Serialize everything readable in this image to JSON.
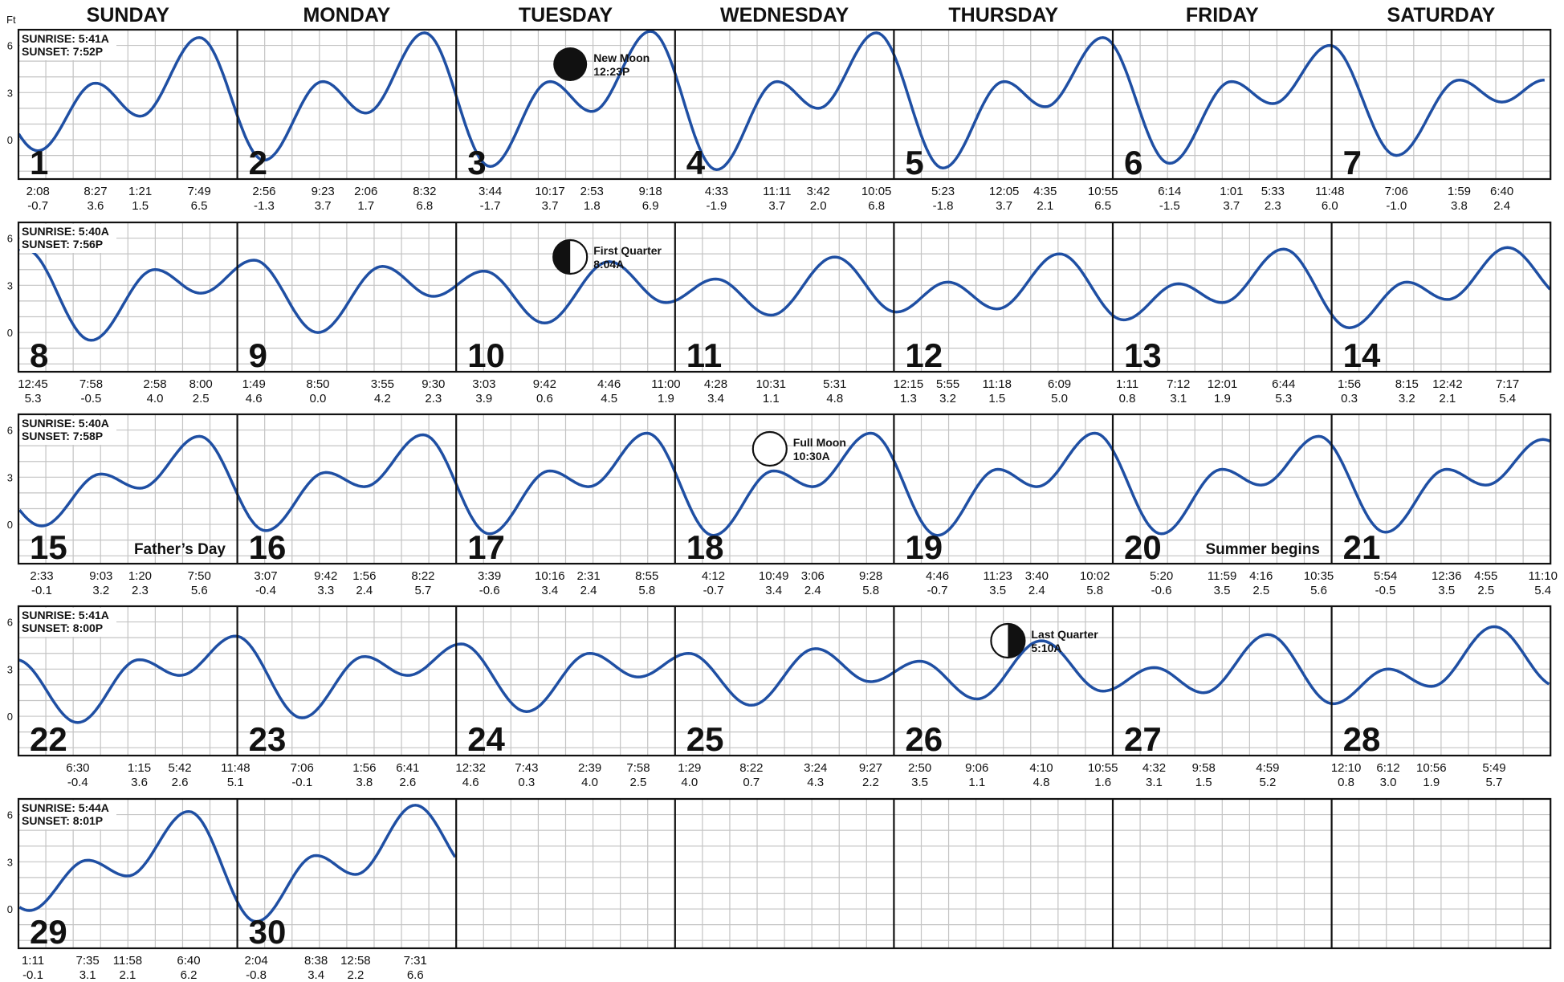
{
  "chart_data": {
    "type": "line",
    "title": "",
    "unit_label": "Ft",
    "y_ticks": [
      "6",
      "3",
      "0"
    ],
    "ylim": [
      -2,
      7
    ],
    "grid": true,
    "line_color": "#1f4fa3",
    "day_names": [
      "SUNDAY",
      "MONDAY",
      "TUESDAY",
      "WEDNESDAY",
      "THURSDAY",
      "FRIDAY",
      "SATURDAY"
    ],
    "weeks": [
      {
        "sunrise": "SUNRISE:  5:41A",
        "sunset": "SUNSET:  7:52P",
        "days": [
          {
            "day": "1",
            "tides": [
              {
                "time": "2:08",
                "height": "-0.7"
              },
              {
                "time": "8:27",
                "height": "3.6"
              },
              {
                "time": "1:21",
                "height": "1.5"
              },
              {
                "time": "7:49",
                "height": "6.5"
              }
            ]
          },
          {
            "day": "2",
            "tides": [
              {
                "time": "2:56",
                "height": "-1.3"
              },
              {
                "time": "9:23",
                "height": "3.7"
              },
              {
                "time": "2:06",
                "height": "1.7"
              },
              {
                "time": "8:32",
                "height": "6.8"
              }
            ]
          },
          {
            "day": "3",
            "tides": [
              {
                "time": "3:44",
                "height": "-1.7"
              },
              {
                "time": "10:17",
                "height": "3.7"
              },
              {
                "time": "2:53",
                "height": "1.8"
              },
              {
                "time": "9:18",
                "height": "6.9"
              }
            ]
          },
          {
            "day": "4",
            "tides": [
              {
                "time": "4:33",
                "height": "-1.9"
              },
              {
                "time": "11:11",
                "height": "3.7"
              },
              {
                "time": "3:42",
                "height": "2.0"
              },
              {
                "time": "10:05",
                "height": "6.8"
              }
            ]
          },
          {
            "day": "5",
            "tides": [
              {
                "time": "5:23",
                "height": "-1.8"
              },
              {
                "time": "12:05",
                "height": "3.7"
              },
              {
                "time": "4:35",
                "height": "2.1"
              },
              {
                "time": "10:55",
                "height": "6.5"
              }
            ]
          },
          {
            "day": "6",
            "tides": [
              {
                "time": "6:14",
                "height": "-1.5"
              },
              {
                "time": "1:01",
                "height": "3.7"
              },
              {
                "time": "5:33",
                "height": "2.3"
              },
              {
                "time": "11:48",
                "height": "6.0"
              }
            ]
          },
          {
            "day": "7",
            "tides": [
              {
                "time": "7:06",
                "height": "-1.0"
              },
              {
                "time": "1:59",
                "height": "3.8"
              },
              {
                "time": "6:40",
                "height": "2.4"
              }
            ]
          }
        ]
      },
      {
        "sunrise": "SUNRISE:  5:40A",
        "sunset": "SUNSET:  7:56P",
        "days": [
          {
            "day": "8",
            "tides": [
              {
                "time": "12:45",
                "height": "5.3"
              },
              {
                "time": "7:58",
                "height": "-0.5"
              },
              {
                "time": "2:58",
                "height": "4.0"
              },
              {
                "time": "8:00",
                "height": "2.5"
              }
            ]
          },
          {
            "day": "9",
            "tides": [
              {
                "time": "1:49",
                "height": "4.6"
              },
              {
                "time": "8:50",
                "height": "0.0"
              },
              {
                "time": "3:55",
                "height": "4.2"
              },
              {
                "time": "9:30",
                "height": "2.3"
              }
            ]
          },
          {
            "day": "10",
            "tides": [
              {
                "time": "3:03",
                "height": "3.9"
              },
              {
                "time": "9:42",
                "height": "0.6"
              },
              {
                "time": "4:46",
                "height": "4.5"
              },
              {
                "time": "11:00",
                "height": "1.9"
              }
            ]
          },
          {
            "day": "11",
            "tides": [
              {
                "time": "4:28",
                "height": "3.4"
              },
              {
                "time": "10:31",
                "height": "1.1"
              },
              {
                "time": "5:31",
                "height": "4.8"
              }
            ]
          },
          {
            "day": "12",
            "tides": [
              {
                "time": "12:15",
                "height": "1.3"
              },
              {
                "time": "5:55",
                "height": "3.2"
              },
              {
                "time": "11:18",
                "height": "1.5"
              },
              {
                "time": "6:09",
                "height": "5.0"
              }
            ]
          },
          {
            "day": "13",
            "tides": [
              {
                "time": "1:11",
                "height": "0.8"
              },
              {
                "time": "7:12",
                "height": "3.1"
              },
              {
                "time": "12:01",
                "height": "1.9"
              },
              {
                "time": "6:44",
                "height": "5.3"
              }
            ]
          },
          {
            "day": "14",
            "tides": [
              {
                "time": "1:56",
                "height": "0.3"
              },
              {
                "time": "8:15",
                "height": "3.2"
              },
              {
                "time": "12:42",
                "height": "2.1"
              },
              {
                "time": "7:17",
                "height": "5.4"
              }
            ]
          }
        ]
      },
      {
        "sunrise": "SUNRISE:  5:40A",
        "sunset": "SUNSET:  7:58P",
        "days": [
          {
            "day": "15",
            "tides": [
              {
                "time": "2:33",
                "height": "-0.1"
              },
              {
                "time": "9:03",
                "height": "3.2"
              },
              {
                "time": "1:20",
                "height": "2.3"
              },
              {
                "time": "7:50",
                "height": "5.6"
              }
            ]
          },
          {
            "day": "16",
            "tides": [
              {
                "time": "3:07",
                "height": "-0.4"
              },
              {
                "time": "9:42",
                "height": "3.3"
              },
              {
                "time": "1:56",
                "height": "2.4"
              },
              {
                "time": "8:22",
                "height": "5.7"
              }
            ]
          },
          {
            "day": "17",
            "tides": [
              {
                "time": "3:39",
                "height": "-0.6"
              },
              {
                "time": "10:16",
                "height": "3.4"
              },
              {
                "time": "2:31",
                "height": "2.4"
              },
              {
                "time": "8:55",
                "height": "5.8"
              }
            ]
          },
          {
            "day": "18",
            "tides": [
              {
                "time": "4:12",
                "height": "-0.7"
              },
              {
                "time": "10:49",
                "height": "3.4"
              },
              {
                "time": "3:06",
                "height": "2.4"
              },
              {
                "time": "9:28",
                "height": "5.8"
              }
            ]
          },
          {
            "day": "19",
            "tides": [
              {
                "time": "4:46",
                "height": "-0.7"
              },
              {
                "time": "11:23",
                "height": "3.5"
              },
              {
                "time": "3:40",
                "height": "2.4"
              },
              {
                "time": "10:02",
                "height": "5.8"
              }
            ]
          },
          {
            "day": "20",
            "tides": [
              {
                "time": "5:20",
                "height": "-0.6"
              },
              {
                "time": "11:59",
                "height": "3.5"
              },
              {
                "time": "4:16",
                "height": "2.5"
              },
              {
                "time": "10:35",
                "height": "5.6"
              }
            ]
          },
          {
            "day": "21",
            "tides": [
              {
                "time": "5:54",
                "height": "-0.5"
              },
              {
                "time": "12:36",
                "height": "3.5"
              },
              {
                "time": "4:55",
                "height": "2.5"
              },
              {
                "time": "11:10",
                "height": "5.4"
              }
            ]
          }
        ]
      },
      {
        "sunrise": "SUNRISE:  5:41A",
        "sunset": "SUNSET:  8:00P",
        "days": [
          {
            "day": "22",
            "tides": [
              {
                "time": "6:30",
                "height": "-0.4"
              },
              {
                "time": "1:15",
                "height": "3.6"
              },
              {
                "time": "5:42",
                "height": "2.6"
              },
              {
                "time": "11:48",
                "height": "5.1"
              }
            ]
          },
          {
            "day": "23",
            "tides": [
              {
                "time": "7:06",
                "height": "-0.1"
              },
              {
                "time": "1:56",
                "height": "3.8"
              },
              {
                "time": "6:41",
                "height": "2.6"
              }
            ]
          },
          {
            "day": "24",
            "tides": [
              {
                "time": "12:32",
                "height": "4.6"
              },
              {
                "time": "7:43",
                "height": "0.3"
              },
              {
                "time": "2:39",
                "height": "4.0"
              },
              {
                "time": "7:58",
                "height": "2.5"
              }
            ]
          },
          {
            "day": "25",
            "tides": [
              {
                "time": "1:29",
                "height": "4.0"
              },
              {
                "time": "8:22",
                "height": "0.7"
              },
              {
                "time": "3:24",
                "height": "4.3"
              },
              {
                "time": "9:27",
                "height": "2.2"
              }
            ]
          },
          {
            "day": "26",
            "tides": [
              {
                "time": "2:50",
                "height": "3.5"
              },
              {
                "time": "9:06",
                "height": "1.1"
              },
              {
                "time": "4:10",
                "height": "4.8"
              },
              {
                "time": "10:55",
                "height": "1.6"
              }
            ]
          },
          {
            "day": "27",
            "tides": [
              {
                "time": "4:32",
                "height": "3.1"
              },
              {
                "time": "9:58",
                "height": "1.5"
              },
              {
                "time": "4:59",
                "height": "5.2"
              }
            ]
          },
          {
            "day": "28",
            "tides": [
              {
                "time": "12:10",
                "height": "0.8"
              },
              {
                "time": "6:12",
                "height": "3.0"
              },
              {
                "time": "10:56",
                "height": "1.9"
              },
              {
                "time": "5:49",
                "height": "5.7"
              }
            ]
          }
        ]
      },
      {
        "sunrise": "SUNRISE:  5:44A",
        "sunset": "SUNSET:  8:01P",
        "days": [
          {
            "day": "29",
            "tides": [
              {
                "time": "1:11",
                "height": "-0.1"
              },
              {
                "time": "7:35",
                "height": "3.1"
              },
              {
                "time": "11:58",
                "height": "2.1"
              },
              {
                "time": "6:40",
                "height": "6.2"
              }
            ]
          },
          {
            "day": "30",
            "tides": [
              {
                "time": "2:04",
                "height": "-0.8"
              },
              {
                "time": "8:38",
                "height": "3.4"
              },
              {
                "time": "12:58",
                "height": "2.2"
              },
              {
                "time": "7:31",
                "height": "6.6"
              }
            ]
          },
          null,
          null,
          null,
          null,
          null
        ]
      }
    ],
    "moon_phases": [
      {
        "week": 0,
        "day": 2,
        "phase": "new",
        "name": "New Moon",
        "time": "12:23P"
      },
      {
        "week": 1,
        "day": 2,
        "phase": "first",
        "name": "First Quarter",
        "time": "8:04A"
      },
      {
        "week": 2,
        "day": 3,
        "phase": "full",
        "name": "Full Moon",
        "time": "10:30A"
      },
      {
        "week": 3,
        "day": 4,
        "phase": "last",
        "name": "Last Quarter",
        "time": "5:10A"
      }
    ],
    "notes": [
      {
        "week": 2,
        "day": 0,
        "text": "Father’s Day"
      },
      {
        "week": 2,
        "day": 5,
        "text": "Summer begins"
      }
    ]
  }
}
